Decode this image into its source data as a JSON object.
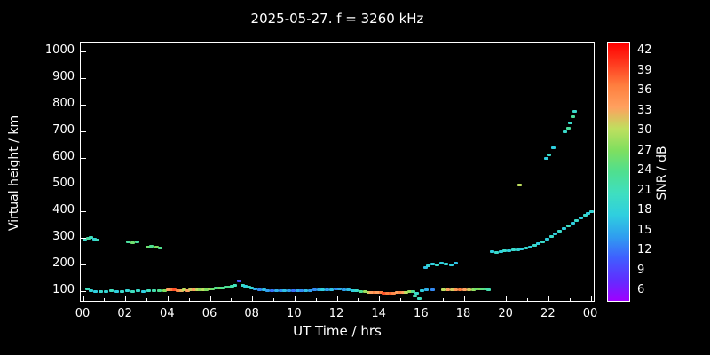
{
  "title": "2025-05-27. f = 3260 kHz",
  "axes": {
    "xlabel": "UT Time / hrs",
    "ylabel": "Virtual height / km",
    "x_ticks": [
      {
        "t": 0,
        "label": "00"
      },
      {
        "t": 2,
        "label": "02"
      },
      {
        "t": 4,
        "label": "04"
      },
      {
        "t": 6,
        "label": "06"
      },
      {
        "t": 8,
        "label": "08"
      },
      {
        "t": 10,
        "label": "10"
      },
      {
        "t": 12,
        "label": "12"
      },
      {
        "t": 14,
        "label": "14"
      },
      {
        "t": 16,
        "label": "16"
      },
      {
        "t": 18,
        "label": "18"
      },
      {
        "t": 20,
        "label": "20"
      },
      {
        "t": 22,
        "label": "22"
      },
      {
        "t": 24,
        "label": "00"
      }
    ],
    "y_ticks": [
      100,
      200,
      300,
      400,
      500,
      600,
      700,
      800,
      900,
      1000
    ]
  },
  "colorbar": {
    "label": "SNR / dB",
    "ticks": [
      42,
      39,
      36,
      33,
      30,
      27,
      24,
      21,
      18,
      15,
      12,
      9,
      6
    ],
    "scale": [
      {
        "v": 6,
        "c": "#9f00ff"
      },
      {
        "v": 9,
        "c": "#5f2fff"
      },
      {
        "v": 12,
        "c": "#3f5fff"
      },
      {
        "v": 15,
        "c": "#2f9fef"
      },
      {
        "v": 18,
        "c": "#2fcfdf"
      },
      {
        "v": 21,
        "c": "#3fdfbf"
      },
      {
        "v": 24,
        "c": "#4fdf8f"
      },
      {
        "v": 27,
        "c": "#7fdf5f"
      },
      {
        "v": 30,
        "c": "#bfdf5f"
      },
      {
        "v": 33,
        "c": "#ffa05f"
      },
      {
        "v": 36,
        "c": "#ff7f3f"
      },
      {
        "v": 39,
        "c": "#ff3b1f"
      },
      {
        "v": 42,
        "c": "#ff0000"
      }
    ]
  },
  "chart_data": {
    "type": "scatter",
    "title": "2025-05-27. f = 3260 kHz",
    "xlabel": "UT Time / hrs",
    "ylabel": "Virtual height / km",
    "zlabel": "SNR / dB",
    "xlim": [
      0,
      24
    ],
    "ylim": [
      100,
      1000
    ],
    "zlim": [
      6,
      42
    ],
    "grid": false,
    "background": "#000000",
    "points_format": [
      "ut_hours",
      "virtual_height_km",
      "snr_db"
    ],
    "points": [
      [
        0.15,
        110,
        21
      ],
      [
        0.35,
        105,
        19
      ],
      [
        0.55,
        100,
        18
      ],
      [
        0.8,
        100,
        20
      ],
      [
        1.05,
        100,
        19
      ],
      [
        1.3,
        103,
        21
      ],
      [
        1.55,
        100,
        18
      ],
      [
        1.8,
        100,
        20
      ],
      [
        2.05,
        103,
        19
      ],
      [
        2.3,
        100,
        21
      ],
      [
        2.55,
        103,
        20
      ],
      [
        2.8,
        100,
        18
      ],
      [
        3.05,
        103,
        21
      ],
      [
        3.3,
        105,
        22
      ],
      [
        3.55,
        103,
        24
      ],
      [
        3.8,
        105,
        27
      ],
      [
        4.0,
        106,
        33
      ],
      [
        4.15,
        108,
        36
      ],
      [
        4.3,
        106,
        38
      ],
      [
        4.45,
        105,
        35
      ],
      [
        4.6,
        105,
        32
      ],
      [
        4.75,
        106,
        30
      ],
      [
        4.9,
        105,
        33
      ],
      [
        5.05,
        106,
        31
      ],
      [
        5.2,
        106,
        33
      ],
      [
        5.35,
        107,
        30
      ],
      [
        5.5,
        106,
        28
      ],
      [
        5.65,
        108,
        30
      ],
      [
        5.8,
        108,
        27
      ],
      [
        5.95,
        110,
        29
      ],
      [
        6.1,
        110,
        26
      ],
      [
        6.25,
        112,
        24
      ],
      [
        6.4,
        113,
        26
      ],
      [
        6.55,
        115,
        24
      ],
      [
        6.7,
        116,
        23
      ],
      [
        6.85,
        118,
        24
      ],
      [
        7.0,
        120,
        22
      ],
      [
        7.15,
        122,
        21
      ],
      [
        7.35,
        140,
        11
      ],
      [
        7.5,
        122,
        20
      ],
      [
        7.65,
        120,
        18
      ],
      [
        7.8,
        117,
        20
      ],
      [
        7.95,
        114,
        19
      ],
      [
        8.1,
        110,
        16
      ],
      [
        8.3,
        108,
        14
      ],
      [
        8.5,
        106,
        17
      ],
      [
        8.7,
        105,
        15
      ],
      [
        8.9,
        105,
        13
      ],
      [
        9.1,
        104,
        16
      ],
      [
        9.3,
        104,
        14
      ],
      [
        9.5,
        105,
        17
      ],
      [
        9.7,
        104,
        15
      ],
      [
        9.9,
        104,
        13
      ],
      [
        10.1,
        105,
        16
      ],
      [
        10.3,
        104,
        14
      ],
      [
        10.5,
        104,
        17
      ],
      [
        10.7,
        105,
        15
      ],
      [
        10.9,
        106,
        14
      ],
      [
        11.1,
        107,
        16
      ],
      [
        11.3,
        106,
        18
      ],
      [
        11.5,
        107,
        15
      ],
      [
        11.7,
        108,
        17
      ],
      [
        11.9,
        109,
        14
      ],
      [
        12.1,
        109,
        16
      ],
      [
        12.3,
        108,
        15
      ],
      [
        12.5,
        106,
        17
      ],
      [
        12.7,
        105,
        18
      ],
      [
        12.9,
        103,
        20
      ],
      [
        13.1,
        101,
        24
      ],
      [
        13.3,
        99,
        28
      ],
      [
        13.45,
        98,
        31
      ],
      [
        13.6,
        98,
        33
      ],
      [
        13.75,
        97,
        35
      ],
      [
        13.9,
        96,
        33
      ],
      [
        14.05,
        96,
        36
      ],
      [
        14.2,
        95,
        38
      ],
      [
        14.35,
        95,
        36
      ],
      [
        14.5,
        95,
        37
      ],
      [
        14.65,
        95,
        35
      ],
      [
        14.8,
        96,
        33
      ],
      [
        14.95,
        96,
        35
      ],
      [
        15.1,
        97,
        33
      ],
      [
        15.25,
        98,
        30
      ],
      [
        15.4,
        99,
        28
      ],
      [
        15.55,
        100,
        24
      ],
      [
        15.65,
        85,
        22
      ],
      [
        15.75,
        95,
        20
      ],
      [
        15.85,
        75,
        21
      ],
      [
        16.0,
        103,
        18
      ],
      [
        16.2,
        106,
        16
      ],
      [
        16.5,
        108,
        14
      ],
      [
        16.15,
        190,
        17
      ],
      [
        16.3,
        198,
        19
      ],
      [
        16.5,
        203,
        18
      ],
      [
        16.7,
        200,
        20
      ],
      [
        16.9,
        207,
        18
      ],
      [
        17.1,
        204,
        19
      ],
      [
        17.35,
        201,
        18
      ],
      [
        17.6,
        208,
        17
      ],
      [
        17.0,
        106,
        30
      ],
      [
        17.2,
        107,
        33
      ],
      [
        17.4,
        106,
        31
      ],
      [
        17.6,
        107,
        34
      ],
      [
        17.8,
        106,
        36
      ],
      [
        18.0,
        107,
        33
      ],
      [
        18.2,
        106,
        31
      ],
      [
        18.4,
        108,
        28
      ],
      [
        18.55,
        109,
        26
      ],
      [
        18.7,
        110,
        27
      ],
      [
        18.85,
        110,
        25
      ],
      [
        19.0,
        109,
        24
      ],
      [
        19.15,
        108,
        22
      ],
      [
        0.05,
        297,
        20
      ],
      [
        0.2,
        301,
        23
      ],
      [
        0.35,
        304,
        21
      ],
      [
        0.5,
        298,
        19
      ],
      [
        0.65,
        294,
        21
      ],
      [
        2.1,
        287,
        23
      ],
      [
        2.3,
        282,
        26
      ],
      [
        2.5,
        286,
        23
      ],
      [
        3.0,
        266,
        26
      ],
      [
        3.2,
        271,
        24
      ],
      [
        3.45,
        268,
        27
      ],
      [
        3.6,
        265,
        24
      ],
      [
        19.3,
        251,
        18
      ],
      [
        19.5,
        248,
        20
      ],
      [
        19.7,
        250,
        18
      ],
      [
        19.9,
        253,
        20
      ],
      [
        20.1,
        255,
        18
      ],
      [
        20.3,
        256,
        20
      ],
      [
        20.5,
        258,
        19
      ],
      [
        20.7,
        261,
        18
      ],
      [
        20.9,
        263,
        20
      ],
      [
        21.1,
        266,
        18
      ],
      [
        21.3,
        272,
        20
      ],
      [
        21.5,
        279,
        18
      ],
      [
        21.7,
        287,
        20
      ],
      [
        21.9,
        296,
        18
      ],
      [
        22.1,
        306,
        20
      ],
      [
        22.3,
        316,
        18
      ],
      [
        22.5,
        327,
        20
      ],
      [
        22.7,
        337,
        18
      ],
      [
        22.9,
        347,
        21
      ],
      [
        23.1,
        357,
        18
      ],
      [
        23.3,
        367,
        20
      ],
      [
        23.5,
        377,
        18
      ],
      [
        23.7,
        387,
        20
      ],
      [
        23.85,
        394,
        18
      ],
      [
        24.0,
        400,
        19
      ],
      [
        20.6,
        500,
        30
      ],
      [
        21.85,
        600,
        18
      ],
      [
        22.0,
        612,
        20
      ],
      [
        22.2,
        640,
        18
      ],
      [
        22.75,
        700,
        20
      ],
      [
        22.9,
        712,
        23
      ],
      [
        23.0,
        733,
        20
      ],
      [
        23.1,
        757,
        23
      ],
      [
        23.2,
        778,
        20
      ]
    ]
  }
}
